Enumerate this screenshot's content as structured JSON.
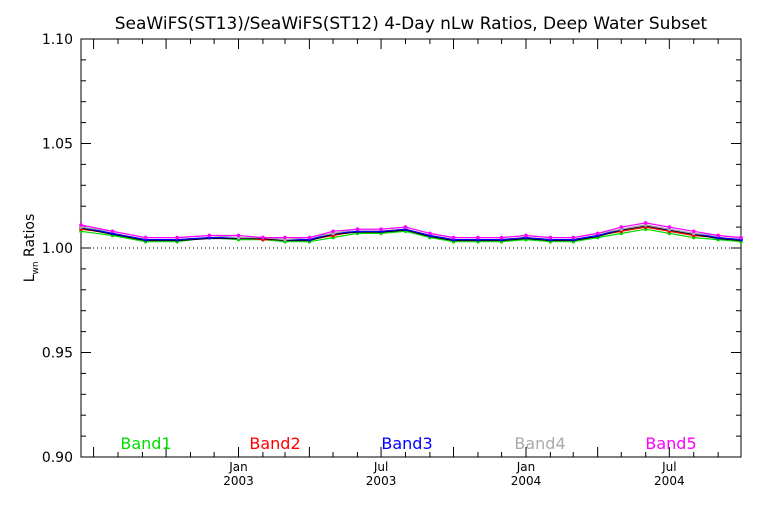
{
  "chart_data": {
    "type": "line",
    "title": "SeaWiFS(ST13)/SeaWiFS(ST12) 4-Day nLw Ratios, Deep Water Subset",
    "ylabel_main": "L",
    "ylabel_sub": "wn",
    "ylabel_rest": " Ratios",
    "ylim": [
      0.9,
      1.1
    ],
    "y_ticks": [
      0.9,
      0.95,
      1.0,
      1.05,
      1.1
    ],
    "y_tick_labels": [
      "0.90",
      "0.95",
      "1.00",
      "1.05",
      "1.10"
    ],
    "xlim": [
      "2002-06-15",
      "2004-09-30"
    ],
    "x_ticks": [
      {
        "date": "2003-01-01",
        "line1": "Jan",
        "line2": "2003"
      },
      {
        "date": "2003-07-01",
        "line1": "Jul",
        "line2": "2003"
      },
      {
        "date": "2004-01-01",
        "line1": "Jan",
        "line2": "2004"
      },
      {
        "date": "2004-07-01",
        "line1": "Jul",
        "line2": "2004"
      }
    ],
    "reference_line": 1.0,
    "x": [
      "2002-06-15",
      "2002-07-25",
      "2002-09-05",
      "2002-10-15",
      "2002-11-25",
      "2003-01-01",
      "2003-02-01",
      "2003-03-01",
      "2003-04-01",
      "2003-05-01",
      "2003-06-01",
      "2003-07-01",
      "2003-08-01",
      "2003-09-01",
      "2003-10-01",
      "2003-11-01",
      "2003-12-01",
      "2004-01-01",
      "2004-02-01",
      "2004-03-01",
      "2004-04-01",
      "2004-05-01",
      "2004-06-01",
      "2004-07-01",
      "2004-08-01",
      "2004-09-01",
      "2004-09-30"
    ],
    "series": [
      {
        "name": "Band1",
        "color": "#00dd00",
        "values": [
          1.008,
          1.006,
          1.003,
          1.003,
          1.005,
          1.004,
          1.004,
          1.003,
          1.003,
          1.005,
          1.007,
          1.007,
          1.008,
          1.005,
          1.003,
          1.003,
          1.003,
          1.004,
          1.003,
          1.003,
          1.005,
          1.007,
          1.009,
          1.007,
          1.005,
          1.004,
          1.003
        ]
      },
      {
        "name": "Band2",
        "color": "#ff0000",
        "values": [
          1.009,
          1.007,
          1.004,
          1.004,
          1.005,
          1.005,
          1.004,
          1.004,
          1.004,
          1.006,
          1.008,
          1.008,
          1.009,
          1.006,
          1.004,
          1.004,
          1.004,
          1.005,
          1.004,
          1.004,
          1.006,
          1.008,
          1.01,
          1.008,
          1.006,
          1.005,
          1.004
        ]
      },
      {
        "name": "Band3",
        "color": "#0000ff",
        "values": [
          1.01,
          1.007,
          1.004,
          1.004,
          1.005,
          1.005,
          1.005,
          1.004,
          1.004,
          1.007,
          1.008,
          1.008,
          1.009,
          1.006,
          1.004,
          1.004,
          1.004,
          1.005,
          1.004,
          1.004,
          1.006,
          1.009,
          1.011,
          1.009,
          1.007,
          1.005,
          1.004
        ]
      },
      {
        "name": "Band4",
        "color": "#aaaaaa",
        "values": [
          1.01,
          1.008,
          1.005,
          1.005,
          1.006,
          1.005,
          1.005,
          1.004,
          1.005,
          1.007,
          1.009,
          1.009,
          1.01,
          1.007,
          1.005,
          1.005,
          1.005,
          1.006,
          1.005,
          1.005,
          1.007,
          1.009,
          1.011,
          1.009,
          1.007,
          1.006,
          1.005
        ]
      },
      {
        "name": "Band5",
        "color": "#ff00ff",
        "values": [
          1.011,
          1.008,
          1.005,
          1.005,
          1.006,
          1.006,
          1.005,
          1.005,
          1.005,
          1.008,
          1.009,
          1.009,
          1.01,
          1.007,
          1.005,
          1.005,
          1.005,
          1.006,
          1.005,
          1.005,
          1.007,
          1.01,
          1.012,
          1.01,
          1.008,
          1.006,
          1.005
        ]
      }
    ],
    "grid": false,
    "legend_placement": "bottom, inside plot"
  }
}
